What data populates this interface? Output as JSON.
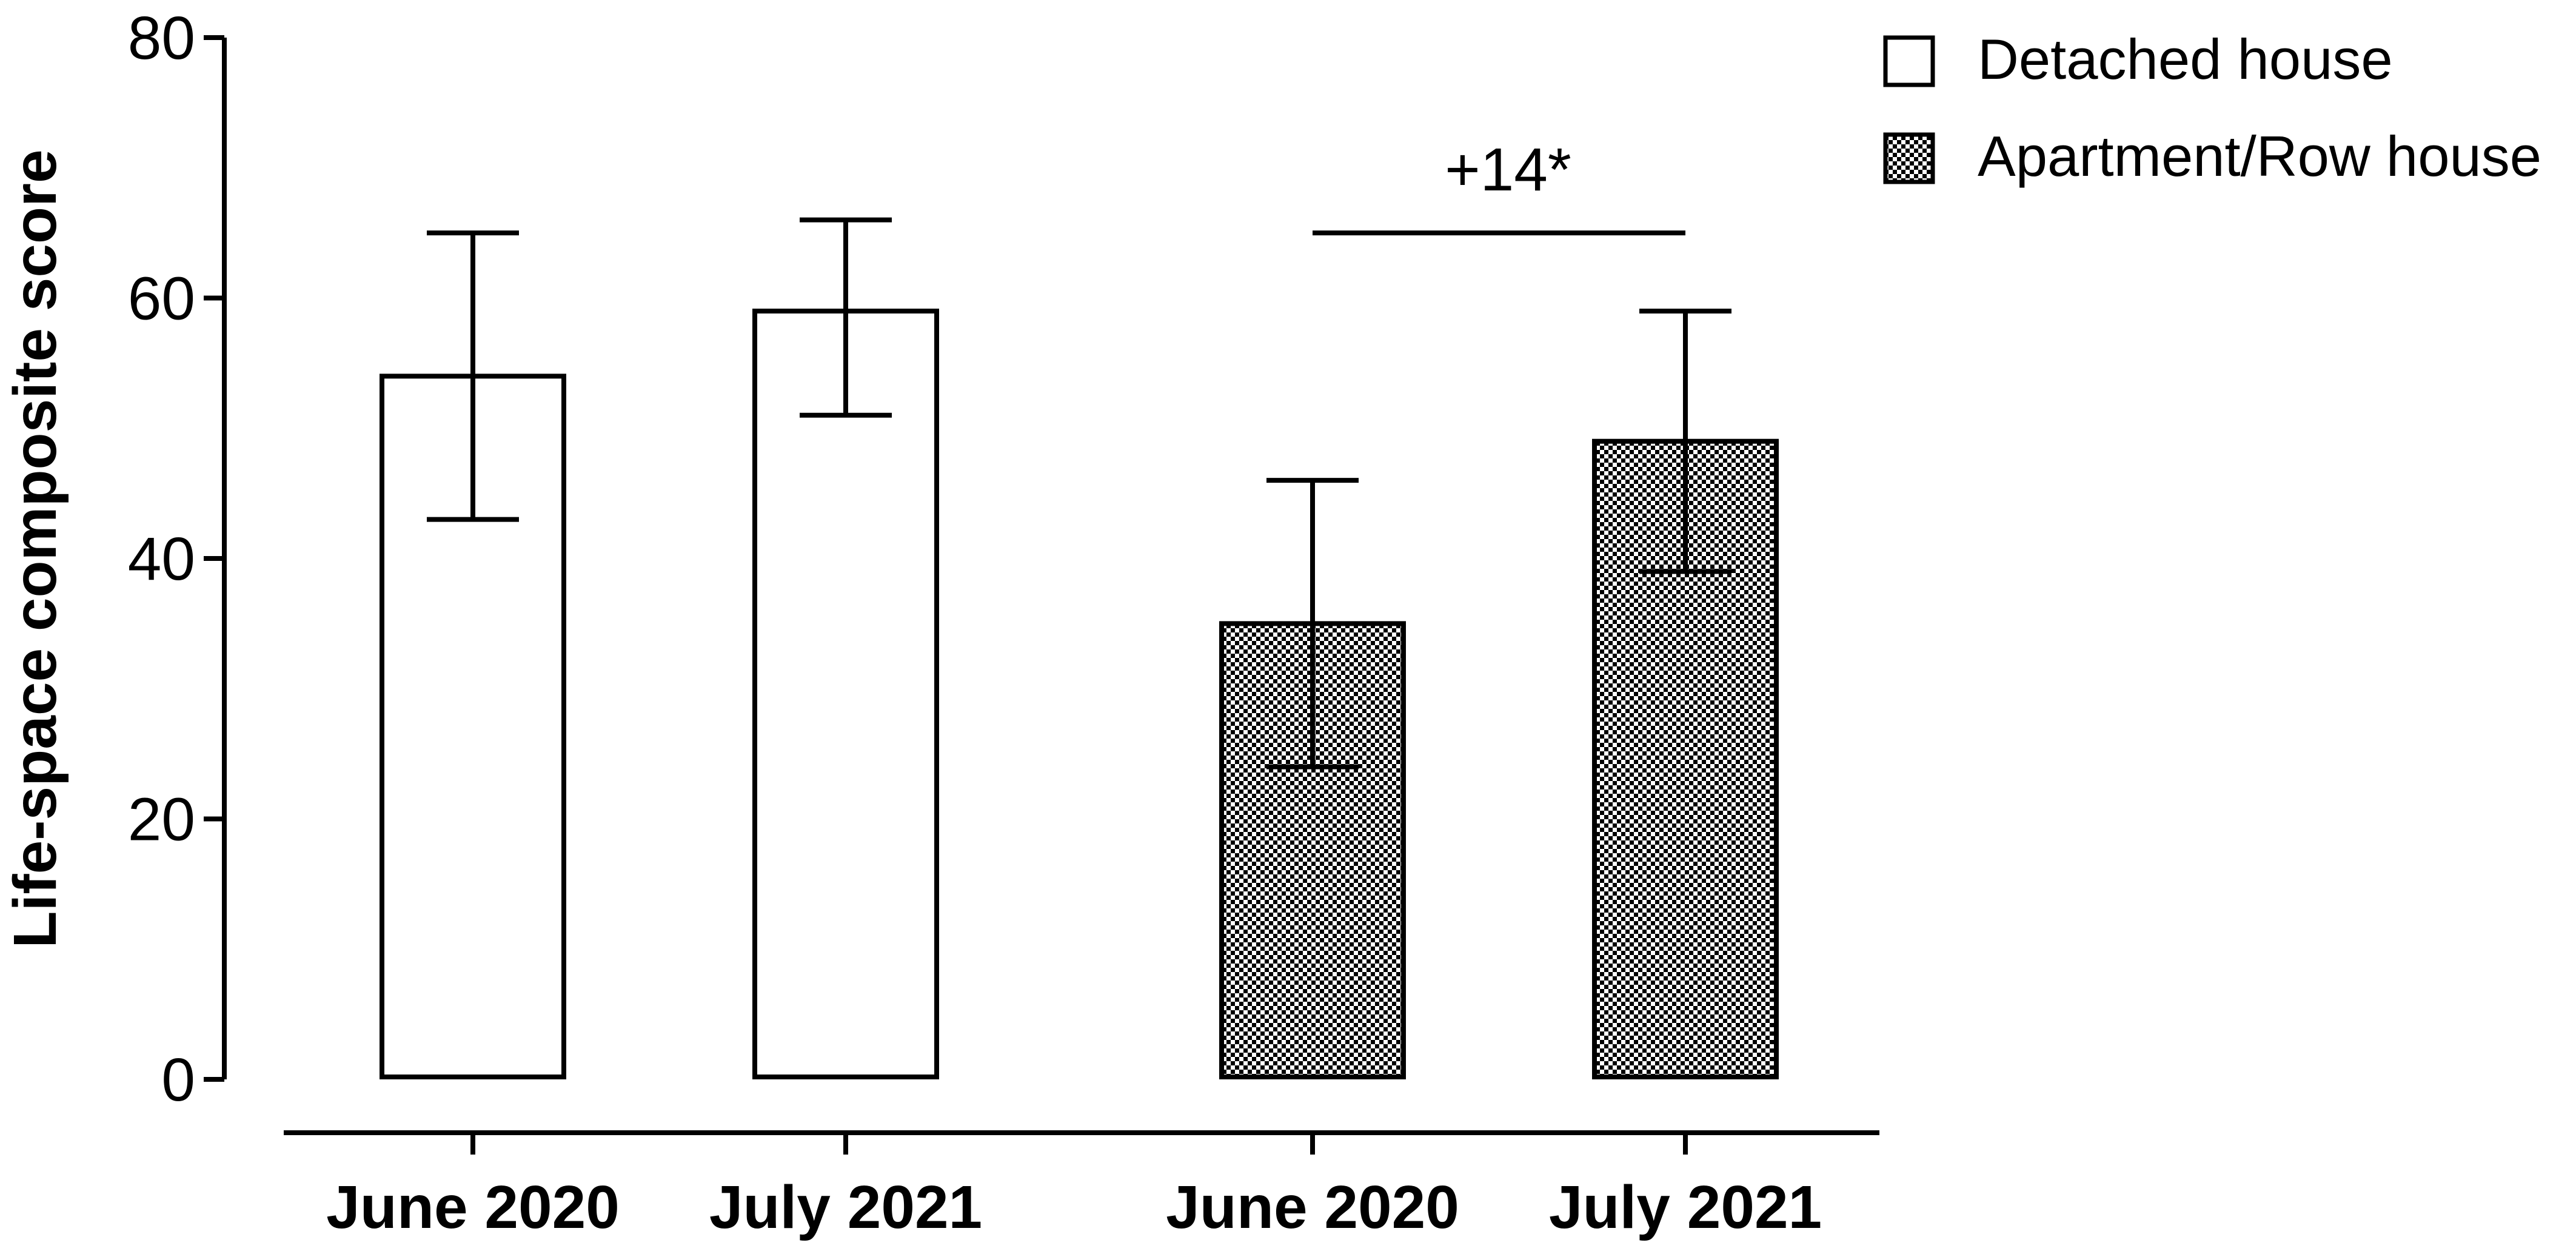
{
  "chart_data": {
    "type": "bar",
    "ylabel": "Life-space composite score",
    "xlabel": "",
    "ylim": [
      0,
      80
    ],
    "yticks": [
      0,
      20,
      40,
      60,
      80
    ],
    "grid": false,
    "legend_position": "top-right",
    "categories": [
      "June 2020",
      "July 2021",
      "June 2020",
      "July 2021"
    ],
    "series": [
      {
        "name": "Detached house",
        "fill": "white",
        "points": [
          {
            "category": "June 2020",
            "value": 54,
            "err_low": 43,
            "err_high": 65
          },
          {
            "category": "July 2021",
            "value": 59,
            "err_low": 51,
            "err_high": 66
          }
        ]
      },
      {
        "name": "Apartment/Row house",
        "fill": "checkered",
        "points": [
          {
            "category": "June 2020",
            "value": 35,
            "err_low": 24,
            "err_high": 46
          },
          {
            "category": "July 2021",
            "value": 49,
            "err_low": 39,
            "err_high": 59
          }
        ]
      }
    ],
    "annotations": [
      {
        "text": "+14*",
        "from_bar": 2,
        "to_bar": 3,
        "y": 65
      }
    ]
  },
  "colors": {
    "line": "#000000",
    "background": "#ffffff",
    "pattern_dark": "#000000",
    "pattern_light": "#ffffff"
  }
}
